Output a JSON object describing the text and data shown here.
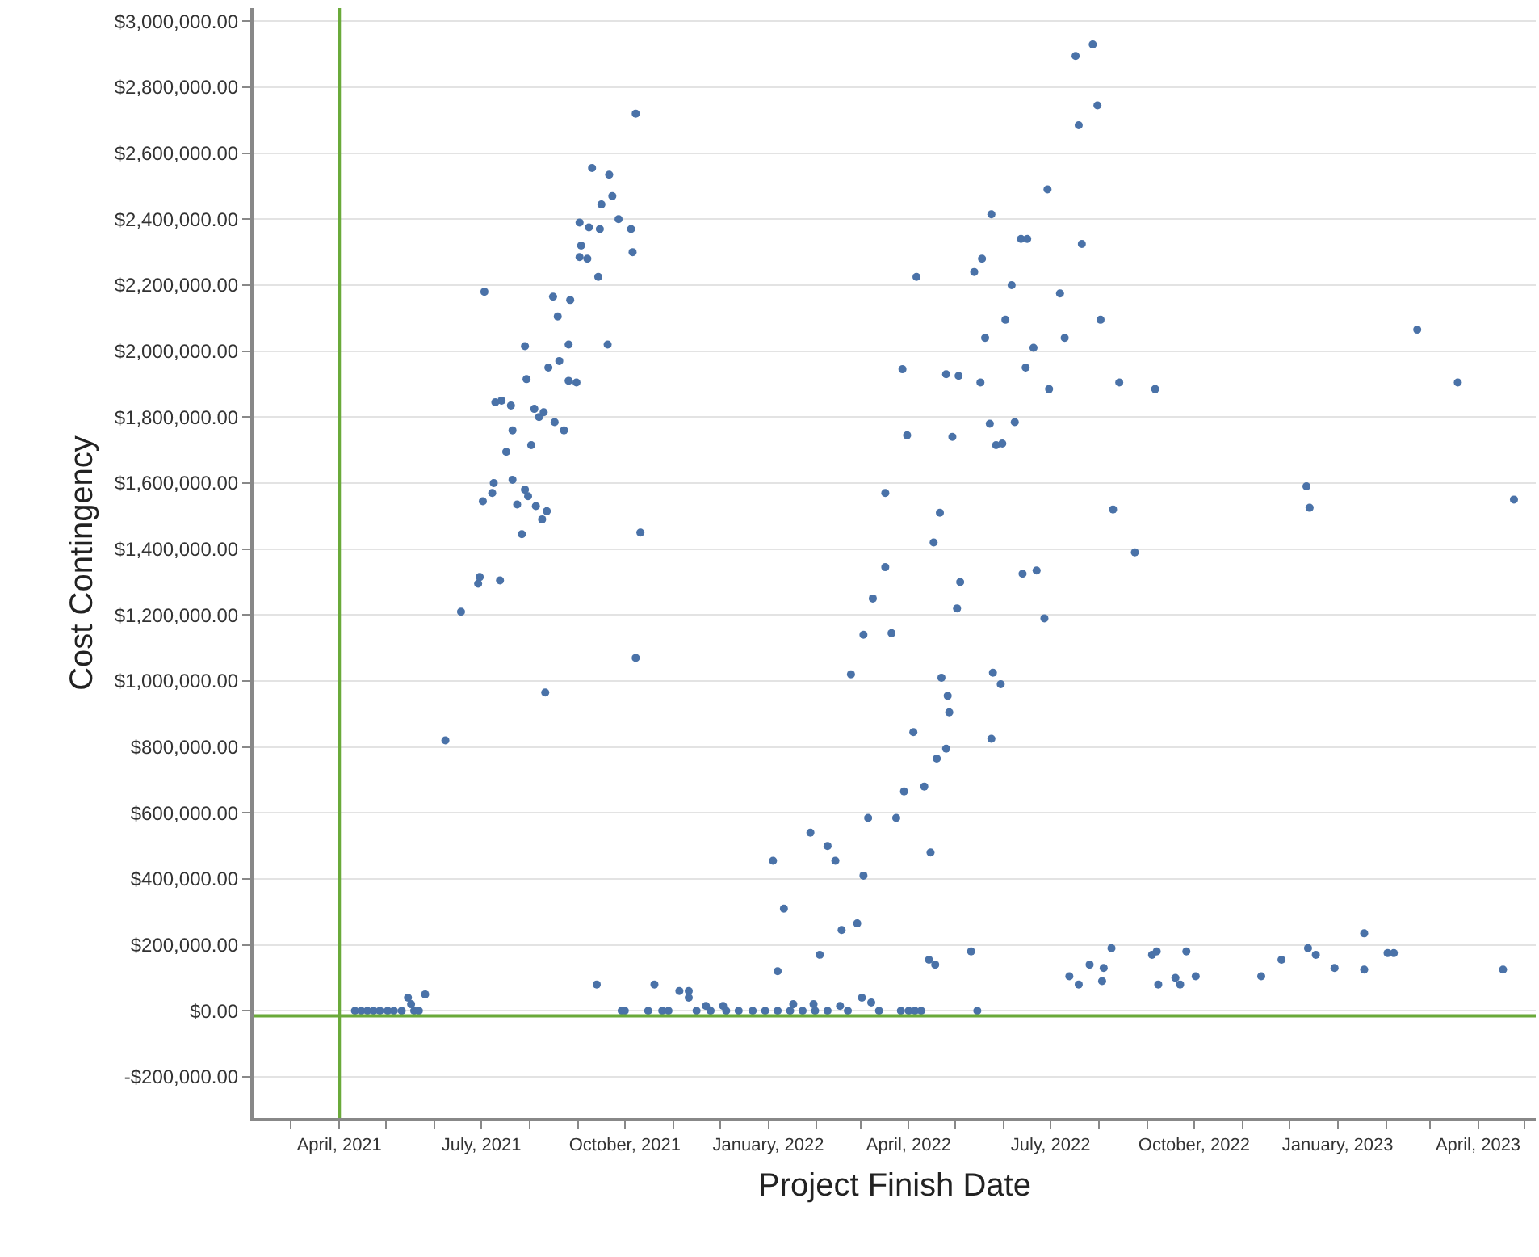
{
  "chart_data": {
    "type": "scatter",
    "xlabel": "Project Finish Date",
    "ylabel": "Cost Contingency",
    "marker": "circle",
    "grid": "y",
    "xlim": [
      "2021-02-05",
      "2023-05-08"
    ],
    "ylim": [
      -325000,
      3040000
    ],
    "xticks": [
      {
        "value": "2021-03-01",
        "label": null
      },
      {
        "value": "2021-04-01",
        "label": "April, 2021"
      },
      {
        "value": "2021-05-01",
        "label": null
      },
      {
        "value": "2021-06-01",
        "label": null
      },
      {
        "value": "2021-07-01",
        "label": "July, 2021"
      },
      {
        "value": "2021-08-01",
        "label": null
      },
      {
        "value": "2021-09-01",
        "label": null
      },
      {
        "value": "2021-10-01",
        "label": "October, 2021"
      },
      {
        "value": "2021-11-01",
        "label": null
      },
      {
        "value": "2021-12-01",
        "label": null
      },
      {
        "value": "2022-01-01",
        "label": "January, 2022"
      },
      {
        "value": "2022-02-01",
        "label": null
      },
      {
        "value": "2022-03-01",
        "label": null
      },
      {
        "value": "2022-04-01",
        "label": "April, 2022"
      },
      {
        "value": "2022-05-01",
        "label": null
      },
      {
        "value": "2022-06-01",
        "label": null
      },
      {
        "value": "2022-07-01",
        "label": "July, 2022"
      },
      {
        "value": "2022-08-01",
        "label": null
      },
      {
        "value": "2022-09-01",
        "label": null
      },
      {
        "value": "2022-10-01",
        "label": "October, 2022"
      },
      {
        "value": "2022-11-01",
        "label": null
      },
      {
        "value": "2022-12-01",
        "label": null
      },
      {
        "value": "2023-01-01",
        "label": "January, 2023"
      },
      {
        "value": "2023-02-01",
        "label": null
      },
      {
        "value": "2023-03-01",
        "label": null
      },
      {
        "value": "2023-04-01",
        "label": "April, 2023"
      },
      {
        "value": "2023-05-01",
        "label": null
      }
    ],
    "yticks": [
      {
        "value": -200000,
        "label": "-$200,000.00"
      },
      {
        "value": 0,
        "label": "$0.00"
      },
      {
        "value": 200000,
        "label": "$200,000.00"
      },
      {
        "value": 400000,
        "label": "$400,000.00"
      },
      {
        "value": 600000,
        "label": "$600,000.00"
      },
      {
        "value": 800000,
        "label": "$800,000.00"
      },
      {
        "value": 1000000,
        "label": "$1,000,000.00"
      },
      {
        "value": 1200000,
        "label": "$1,200,000.00"
      },
      {
        "value": 1400000,
        "label": "$1,400,000.00"
      },
      {
        "value": 1600000,
        "label": "$1,600,000.00"
      },
      {
        "value": 1800000,
        "label": "$1,800,000.00"
      },
      {
        "value": 2000000,
        "label": "$2,000,000.00"
      },
      {
        "value": 2200000,
        "label": "$2,200,000.00"
      },
      {
        "value": 2400000,
        "label": "$2,400,000.00"
      },
      {
        "value": 2600000,
        "label": "$2,600,000.00"
      },
      {
        "value": 2800000,
        "label": "$2,800,000.00"
      },
      {
        "value": 3000000,
        "label": "$3,000,000.00"
      }
    ],
    "ref_lines": [
      {
        "axis": "x",
        "value": "2021-04-01",
        "color": "#6aaa3a"
      },
      {
        "axis": "y",
        "value": -15000,
        "color": "#6aaa3a"
      }
    ],
    "x": [
      "2021-04-11",
      "2021-04-15",
      "2021-04-19",
      "2021-04-23",
      "2021-04-27",
      "2021-05-02",
      "2021-05-06",
      "2021-05-11",
      "2021-05-15",
      "2021-05-17",
      "2021-05-19",
      "2021-05-22",
      "2021-05-26",
      "2021-06-08",
      "2021-06-18",
      "2021-06-29",
      "2021-06-30",
      "2021-07-02",
      "2021-07-03",
      "2021-07-08",
      "2021-07-09",
      "2021-07-10",
      "2021-07-13",
      "2021-07-14",
      "2021-07-17",
      "2021-07-20",
      "2021-07-21",
      "2021-07-21",
      "2021-07-24",
      "2021-07-27",
      "2021-07-29",
      "2021-07-29",
      "2021-07-30",
      "2021-07-31",
      "2021-08-02",
      "2021-08-04",
      "2021-08-05",
      "2021-08-07",
      "2021-08-09",
      "2021-08-10",
      "2021-08-11",
      "2021-08-12",
      "2021-08-13",
      "2021-08-16",
      "2021-08-17",
      "2021-08-19",
      "2021-08-20",
      "2021-08-23",
      "2021-08-26",
      "2021-08-26",
      "2021-08-27",
      "2021-08-31",
      "2021-09-02",
      "2021-09-02",
      "2021-09-03",
      "2021-09-07",
      "2021-09-08",
      "2021-09-10",
      "2021-09-13",
      "2021-09-14",
      "2021-09-15",
      "2021-09-16",
      "2021-09-20",
      "2021-09-21",
      "2021-09-23",
      "2021-09-27",
      "2021-09-29",
      "2021-10-01",
      "2021-10-05",
      "2021-10-06",
      "2021-10-08",
      "2021-10-08",
      "2021-10-11",
      "2021-10-16",
      "2021-10-20",
      "2021-10-25",
      "2021-10-29",
      "2021-11-05",
      "2021-11-11",
      "2021-11-11",
      "2021-11-16",
      "2021-11-22",
      "2021-11-25",
      "2021-12-03",
      "2021-12-05",
      "2021-12-13",
      "2021-12-22",
      "2021-12-30",
      "2022-01-04",
      "2022-01-07",
      "2022-01-07",
      "2022-01-11",
      "2022-01-15",
      "2022-01-17",
      "2022-01-23",
      "2022-01-28",
      "2022-01-30",
      "2022-01-31",
      "2022-02-03",
      "2022-02-08",
      "2022-02-08",
      "2022-02-13",
      "2022-02-16",
      "2022-02-17",
      "2022-02-21",
      "2022-02-23",
      "2022-02-27",
      "2022-03-02",
      "2022-03-03",
      "2022-03-03",
      "2022-03-06",
      "2022-03-08",
      "2022-03-09",
      "2022-03-13",
      "2022-03-17",
      "2022-03-17",
      "2022-03-21",
      "2022-03-24",
      "2022-03-27",
      "2022-03-28",
      "2022-03-29",
      "2022-03-31",
      "2022-04-01",
      "2022-04-04",
      "2022-04-05",
      "2022-04-06",
      "2022-04-09",
      "2022-04-11",
      "2022-04-14",
      "2022-04-15",
      "2022-04-17",
      "2022-04-18",
      "2022-04-19",
      "2022-04-21",
      "2022-04-22",
      "2022-04-25",
      "2022-04-25",
      "2022-04-26",
      "2022-04-27",
      "2022-04-29",
      "2022-05-02",
      "2022-05-03",
      "2022-05-04",
      "2022-05-11",
      "2022-05-13",
      "2022-05-15",
      "2022-05-17",
      "2022-05-18",
      "2022-05-20",
      "2022-05-23",
      "2022-05-24",
      "2022-05-24",
      "2022-05-25",
      "2022-05-27",
      "2022-05-30",
      "2022-05-31",
      "2022-06-02",
      "2022-06-06",
      "2022-06-08",
      "2022-06-12",
      "2022-06-13",
      "2022-06-15",
      "2022-06-16",
      "2022-06-20",
      "2022-06-22",
      "2022-06-27",
      "2022-06-29",
      "2022-06-30",
      "2022-07-07",
      "2022-07-10",
      "2022-07-13",
      "2022-07-17",
      "2022-07-19",
      "2022-07-19",
      "2022-07-21",
      "2022-07-26",
      "2022-07-28",
      "2022-07-31",
      "2022-08-02",
      "2022-08-03",
      "2022-08-04",
      "2022-08-09",
      "2022-08-10",
      "2022-08-14",
      "2022-08-24",
      "2022-09-04",
      "2022-09-06",
      "2022-09-07",
      "2022-09-08",
      "2022-09-19",
      "2022-09-22",
      "2022-09-26",
      "2022-10-02",
      "2022-11-13",
      "2022-11-26",
      "2022-12-12",
      "2022-12-13",
      "2022-12-14",
      "2022-12-18",
      "2022-12-30",
      "2023-01-18",
      "2023-01-18",
      "2023-02-02",
      "2023-02-06",
      "2023-02-21",
      "2023-03-19",
      "2023-04-17",
      "2023-04-24"
    ],
    "series": [
      {
        "color": "#4a72a8",
        "values": [
          0,
          0,
          0,
          0,
          0,
          0,
          0,
          0,
          40000,
          20000,
          0,
          0,
          50000,
          820000,
          1210000,
          1295000,
          1315000,
          1545000,
          2180000,
          1570000,
          1600000,
          1845000,
          1305000,
          1850000,
          1695000,
          1835000,
          1760000,
          1610000,
          1535000,
          1445000,
          2015000,
          1580000,
          1915000,
          1560000,
          1715000,
          1825000,
          1530000,
          1800000,
          1490000,
          1815000,
          965000,
          1515000,
          1950000,
          2165000,
          1785000,
          2105000,
          1970000,
          1760000,
          2020000,
          1910000,
          2155000,
          1905000,
          2390000,
          2285000,
          2320000,
          2280000,
          2375000,
          2555000,
          80000,
          2225000,
          2370000,
          2445000,
          2020000,
          2535000,
          2470000,
          2400000,
          0,
          0,
          2370000,
          2300000,
          2720000,
          1070000,
          1450000,
          0,
          80000,
          0,
          0,
          60000,
          60000,
          40000,
          0,
          15000,
          0,
          15000,
          0,
          0,
          0,
          0,
          455000,
          120000,
          0,
          310000,
          0,
          20000,
          0,
          540000,
          20000,
          0,
          170000,
          0,
          500000,
          455000,
          15000,
          245000,
          0,
          1020000,
          265000,
          40000,
          1140000,
          410000,
          585000,
          25000,
          1250000,
          0,
          1570000,
          1345000,
          1145000,
          585000,
          0,
          1945000,
          665000,
          1745000,
          0,
          845000,
          0,
          2225000,
          0,
          680000,
          155000,
          480000,
          1420000,
          140000,
          765000,
          1510000,
          1010000,
          795000,
          1930000,
          955000,
          905000,
          1740000,
          1220000,
          1925000,
          1300000,
          180000,
          2240000,
          0,
          1905000,
          2280000,
          2040000,
          1780000,
          2415000,
          825000,
          1025000,
          1715000,
          990000,
          1720000,
          2095000,
          2200000,
          1785000,
          2340000,
          1325000,
          1950000,
          2340000,
          2010000,
          1335000,
          1190000,
          2490000,
          1885000,
          2175000,
          2040000,
          105000,
          2895000,
          80000,
          2685000,
          2325000,
          140000,
          2930000,
          2745000,
          2095000,
          90000,
          130000,
          190000,
          1520000,
          1905000,
          1390000,
          170000,
          1885000,
          180000,
          80000,
          100000,
          80000,
          180000,
          105000,
          105000,
          155000,
          1590000,
          190000,
          1525000,
          170000,
          130000,
          235000,
          125000,
          175000,
          175000,
          2065000,
          1905000,
          125000,
          1550000
        ]
      }
    ]
  }
}
